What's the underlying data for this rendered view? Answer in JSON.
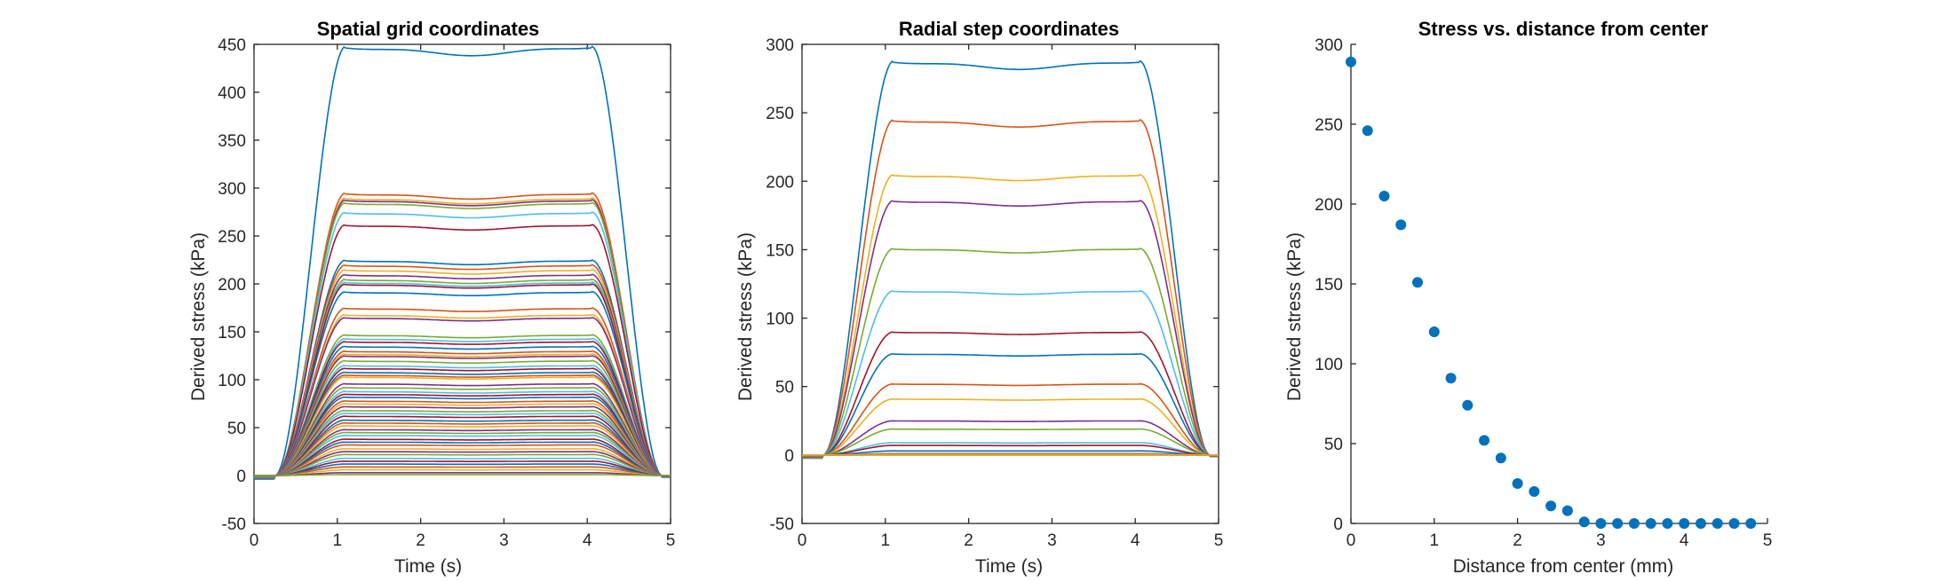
{
  "chart_data": [
    {
      "type": "line",
      "title": "Spatial grid coordinates",
      "xlabel": "Time (s)",
      "ylabel": "Derived stress (kPa)",
      "xlim": [
        0,
        5
      ],
      "ylim": [
        -50,
        450
      ],
      "xticks": [
        "0",
        "1",
        "2",
        "3",
        "4",
        "5"
      ],
      "yticks": [
        "-50",
        "0",
        "50",
        "100",
        "150",
        "200",
        "250",
        "300",
        "350",
        "400",
        "450"
      ],
      "grid": false,
      "legend": "none",
      "plateaus": [
        448,
        295,
        290,
        288,
        285,
        275,
        262,
        225,
        220,
        215,
        210,
        205,
        202,
        200,
        192,
        175,
        168,
        165,
        147,
        143,
        140,
        135,
        130,
        127,
        125,
        120,
        115,
        112,
        108,
        105,
        103,
        96,
        92,
        88,
        85,
        82,
        78,
        75,
        72,
        68,
        65,
        62,
        58,
        55,
        52,
        48,
        45,
        42,
        38,
        35,
        32,
        28,
        25,
        22,
        18,
        15,
        12,
        9,
        6,
        3,
        1
      ],
      "colors": [
        "#0072BD",
        "#D95319",
        "#EDB120",
        "#7E2F8E",
        "#77AC30",
        "#4DBEEE",
        "#A2142F"
      ]
    },
    {
      "type": "line",
      "title": "Radial step coordinates",
      "xlabel": "Time (s)",
      "ylabel": "Derived stress (kPa)",
      "xlim": [
        0,
        5
      ],
      "ylim": [
        -50,
        300
      ],
      "xticks": [
        "0",
        "1",
        "2",
        "3",
        "4",
        "5"
      ],
      "yticks": [
        "-50",
        "0",
        "50",
        "100",
        "150",
        "200",
        "250",
        "300"
      ],
      "grid": false,
      "legend": "none",
      "plateaus": [
        288,
        245,
        205,
        186,
        151,
        120,
        90,
        74,
        52,
        41,
        25,
        19,
        9,
        7,
        3,
        1,
        0.5,
        0.3,
        0.2,
        0.1,
        0.05,
        0.02,
        0.01,
        0
      ],
      "colors": [
        "#0072BD",
        "#D95319",
        "#EDB120",
        "#7E2F8E",
        "#77AC30",
        "#4DBEEE",
        "#A2142F"
      ]
    },
    {
      "type": "scatter",
      "title": "Stress vs. distance from center",
      "xlabel": "Distance from center (mm)",
      "ylabel": "Derived stress (kPa)",
      "xlim": [
        0,
        5
      ],
      "ylim": [
        0,
        300
      ],
      "xticks": [
        "0",
        "1",
        "2",
        "3",
        "4",
        "5"
      ],
      "yticks": [
        "0",
        "50",
        "100",
        "150",
        "200",
        "250",
        "300"
      ],
      "grid": false,
      "legend": "none",
      "marker_color": "#0072BD",
      "x": [
        0,
        0.2,
        0.4,
        0.6,
        0.8,
        1.0,
        1.2,
        1.4,
        1.6,
        1.8,
        2.0,
        2.2,
        2.4,
        2.6,
        2.8,
        3.0,
        3.2,
        3.4,
        3.6,
        3.8,
        4.0,
        4.2,
        4.4,
        4.6,
        4.8
      ],
      "y": [
        289,
        246,
        205,
        187,
        151,
        120,
        91,
        74,
        52,
        41,
        25,
        20,
        11,
        8,
        1,
        0,
        0,
        0,
        0,
        0,
        0,
        0,
        0,
        0,
        0
      ]
    }
  ]
}
